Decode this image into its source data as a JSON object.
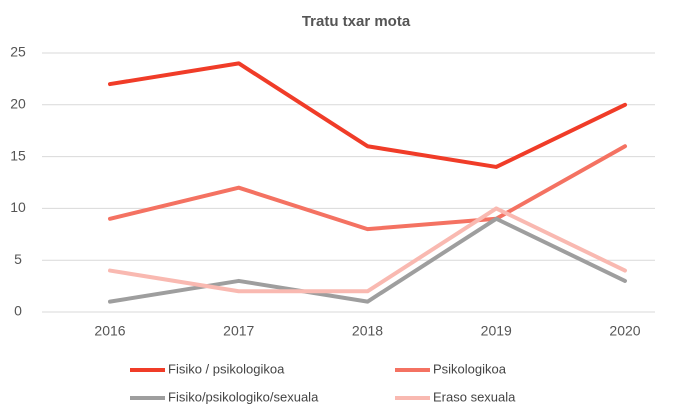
{
  "chart_data": {
    "type": "line",
    "title": "Tratu txar mota",
    "categories": [
      "2016",
      "2017",
      "2018",
      "2019",
      "2020"
    ],
    "series": [
      {
        "name": "Fisiko / psikologikoa",
        "color": "#f03c28",
        "values": [
          22,
          24,
          16,
          14,
          20
        ]
      },
      {
        "name": "Psikologikoa",
        "color": "#f47262",
        "values": [
          9,
          12,
          8,
          9,
          16
        ]
      },
      {
        "name": "Fisiko/psikologiko/sexuala",
        "color": "#9e9e9e",
        "values": [
          1,
          3,
          1,
          9,
          3
        ]
      },
      {
        "name": "Eraso sexuala",
        "color": "#f9b9b1",
        "values": [
          4,
          2,
          2,
          10,
          4
        ]
      }
    ],
    "ylim": [
      0,
      25
    ],
    "yticks": [
      0,
      5,
      10,
      15,
      20,
      25
    ],
    "grid": true
  }
}
